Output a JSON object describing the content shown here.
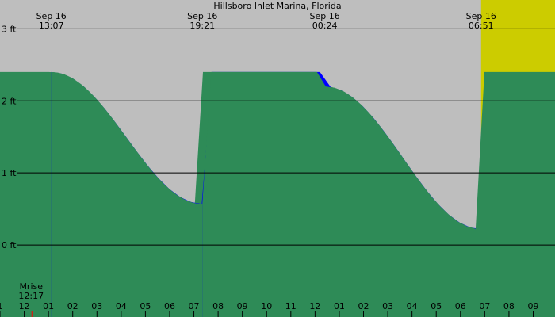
{
  "chart_data": {
    "type": "area",
    "title": "Hillsboro Inlet Marina, Florida",
    "y_unit": "ft",
    "ylim": [
      -1.0,
      3.4
    ],
    "y_ticks": [
      {
        "value": 0,
        "label": "0 ft"
      },
      {
        "value": 1,
        "label": "1 ft"
      },
      {
        "value": 2,
        "label": "2 ft"
      },
      {
        "value": 3,
        "label": "3 ft"
      }
    ],
    "x_range_hours": [
      11.0,
      33.9
    ],
    "x_unit": "hours",
    "extrema": [
      {
        "date": "Sep 16",
        "time": "00:24",
        "height_ft": 2.2,
        "kind": "high"
      },
      {
        "date": "Sep 16",
        "time": "06:51",
        "height_ft": 0.22,
        "kind": "low"
      },
      {
        "date": "Sep 16",
        "time": "13:07",
        "height_ft": 2.4,
        "kind": "high"
      },
      {
        "date": "Sep 16",
        "time": "19:21",
        "height_ft": 0.57,
        "kind": "low"
      }
    ],
    "daylight": {
      "start": "06:51",
      "end": "19:21"
    },
    "moonrise": {
      "label": "Mrise",
      "time": "12:17"
    },
    "hour_labels": [
      "1",
      "12",
      "01",
      "02",
      "03",
      "04",
      "05",
      "06",
      "07",
      "08",
      "09",
      "10",
      "11",
      "12",
      "01",
      "02",
      "03",
      "04",
      "05",
      "06",
      "07",
      "08",
      "09"
    ],
    "colors": {
      "night": "#bebebe",
      "day": "#cccc00",
      "rising": "#0000ff",
      "falling": "#2e8b57",
      "moonrise_tick": "#ff0000",
      "grid": "#000000"
    }
  }
}
